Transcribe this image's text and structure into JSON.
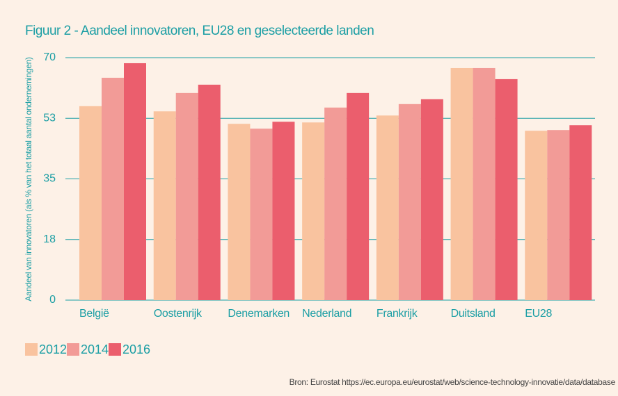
{
  "chart_data": {
    "type": "bar",
    "title": "Figuur 2 - Aandeel innovatoren, EU28 en geselecteerde landen",
    "y_label": "Aandeel van innovatoren (als % van het totaal aantal ondernemingen)",
    "categories": [
      "België",
      "Oostenrijk",
      "Denemarken",
      "Nederland",
      "Frankrijk",
      "Duitsland",
      "EU28"
    ],
    "series": [
      {
        "name": "2012",
        "color": "#f9c39f",
        "values": [
          56.0,
          54.5,
          50.9,
          51.3,
          53.3,
          67.0,
          48.9
        ]
      },
      {
        "name": "2014",
        "color": "#f29b97",
        "values": [
          64.2,
          59.8,
          49.5,
          55.6,
          56.6,
          67.0,
          49.1
        ]
      },
      {
        "name": "2016",
        "color": "#eb5e6d",
        "values": [
          68.4,
          62.2,
          51.5,
          59.8,
          58.0,
          63.8,
          50.5
        ]
      }
    ],
    "ylim": [
      0,
      70
    ],
    "yticks": [
      0,
      {
        "value": 17.5,
        "label": "18"
      },
      35,
      {
        "value": 52.5,
        "label": "53"
      },
      70
    ],
    "grid": true,
    "legend": "bottom-left",
    "source": "Bron: Eurostat https://ec.europa.eu/eurostat/web/science-technology-innovatie/data/database"
  }
}
